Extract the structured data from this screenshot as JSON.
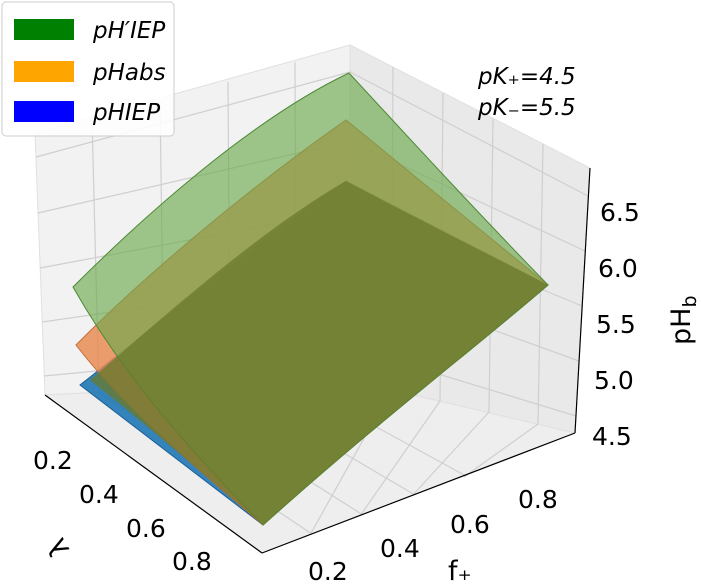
{
  "chart_data": {
    "type": "surface3d",
    "title": "",
    "annotations": {
      "pk_plus": "pK₊=4.5",
      "pk_minus": "pK₋=5.5"
    },
    "axes": {
      "x": {
        "label": "f₊",
        "ticks": [
          "0.2",
          "0.4",
          "0.6",
          "0.8"
        ]
      },
      "y": {
        "label": "λ",
        "ticks": [
          "0.2",
          "0.4",
          "0.6",
          "0.8"
        ]
      },
      "z": {
        "label": "pH_b",
        "ticks": [
          "4.5",
          "5.0",
          "5.5",
          "6.0",
          "6.5"
        ]
      }
    },
    "grid": true,
    "legend": {
      "position": "top-left",
      "entries": [
        {
          "label": "pH′IEP",
          "color": "#008000"
        },
        {
          "label": "pHabs",
          "color": "#FFA500"
        },
        {
          "label": "pHIEP",
          "color": "#0000FF"
        }
      ]
    },
    "series": [
      {
        "name": "pH′IEP",
        "color": "#008000",
        "alpha": 0.45,
        "corners": {
          "f0.1_l0.9": 5.65,
          "f0.1_l0.1": 6.65,
          "f0.9_l0.1": 6.65,
          "f0.9_l0.9": 5.65
        }
      },
      {
        "name": "pHabs",
        "color": "#FFA500",
        "alpha": 0.6,
        "corners": {
          "f0.1_l0.9": 4.9,
          "f0.1_l0.1": 5.65,
          "f0.9_l0.1": 6.25,
          "f0.9_l0.9": 5.65
        }
      },
      {
        "name": "pHIEP",
        "color": "#0000FF",
        "alpha": 0.7,
        "corners": {
          "f0.1_l0.9": 4.6,
          "f0.1_l0.1": 5.25,
          "f0.9_l0.1": 5.6,
          "f0.9_l0.9": 5.6
        }
      }
    ]
  }
}
